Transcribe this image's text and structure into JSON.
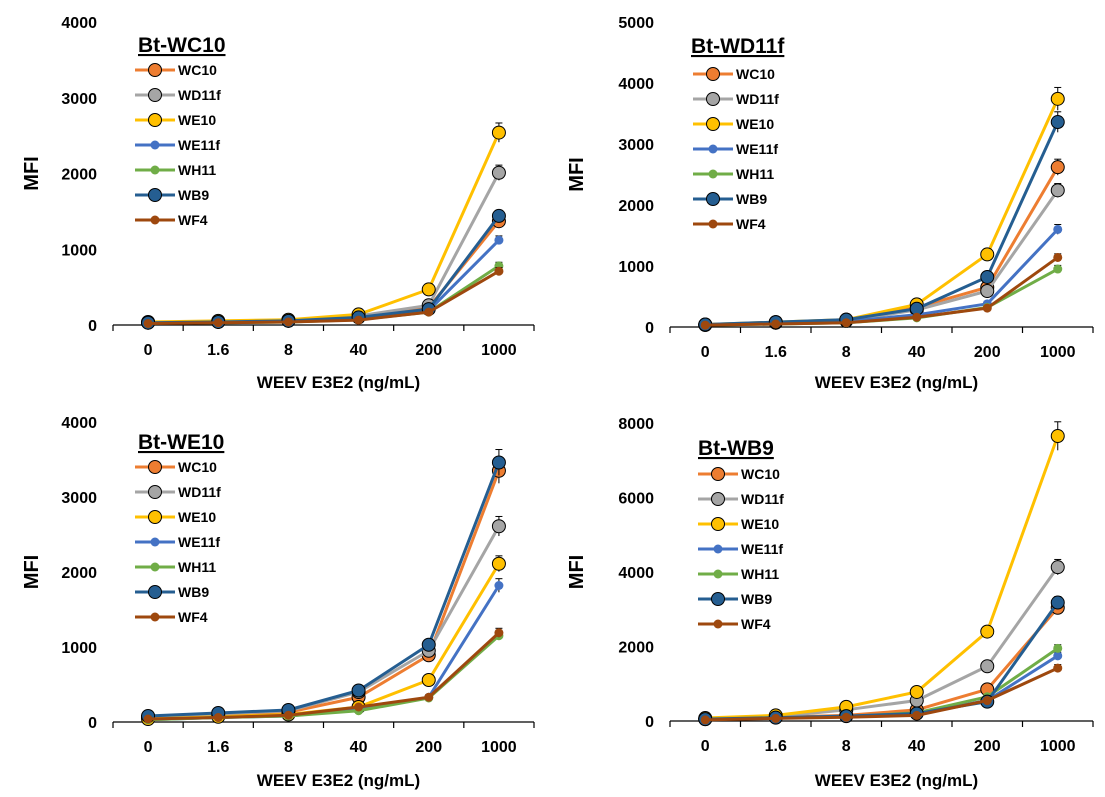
{
  "chart_data": [
    {
      "type": "line",
      "title": "Bt-WC10",
      "xlabel": "WEEV E3E2 (ng/mL)",
      "ylabel": "MFI",
      "categories": [
        "0",
        "1.6",
        "8",
        "40",
        "200",
        "1000"
      ],
      "ylim": [
        0,
        4000
      ],
      "yticks": [
        0,
        1000,
        2000,
        3000,
        4000
      ],
      "legend": "top-left",
      "series": [
        {
          "name": "WC10",
          "values": [
            30,
            40,
            55,
            110,
            230,
            1370
          ],
          "marker": "large",
          "color": "#ED7D31"
        },
        {
          "name": "WD11f",
          "values": [
            35,
            45,
            65,
            120,
            260,
            2010
          ],
          "marker": "large",
          "color": "#A5A5A5"
        },
        {
          "name": "WE10",
          "values": [
            40,
            55,
            70,
            140,
            470,
            2540
          ],
          "marker": "large",
          "color": "#FFC000"
        },
        {
          "name": "WE11f",
          "values": [
            25,
            35,
            45,
            85,
            190,
            1120
          ],
          "marker": "small",
          "color": "#4472C4"
        },
        {
          "name": "WH11",
          "values": [
            25,
            30,
            40,
            70,
            170,
            780
          ],
          "marker": "small",
          "color": "#70AD47"
        },
        {
          "name": "WB9",
          "values": [
            30,
            40,
            55,
            100,
            210,
            1440
          ],
          "marker": "large",
          "color": "#255E91"
        },
        {
          "name": "WF4",
          "values": [
            20,
            30,
            40,
            65,
            170,
            710
          ],
          "marker": "small",
          "color": "#9E480E"
        }
      ]
    },
    {
      "type": "line",
      "title": "Bt-WD11f",
      "xlabel": "WEEV E3E2 (ng/mL)",
      "ylabel": "MFI",
      "categories": [
        "0",
        "1.6",
        "8",
        "40",
        "200",
        "1000"
      ],
      "ylim": [
        0,
        5000
      ],
      "yticks": [
        0,
        1000,
        2000,
        3000,
        4000,
        5000
      ],
      "legend": "top-left",
      "series": [
        {
          "name": "WC10",
          "values": [
            35,
            70,
            110,
            320,
            650,
            2620
          ],
          "marker": "large",
          "color": "#ED7D31"
        },
        {
          "name": "WD11f",
          "values": [
            35,
            70,
            100,
            280,
            590,
            2240
          ],
          "marker": "large",
          "color": "#A5A5A5"
        },
        {
          "name": "WE10",
          "values": [
            40,
            80,
            120,
            370,
            1190,
            3740
          ],
          "marker": "large",
          "color": "#FFC000"
        },
        {
          "name": "WE11f",
          "values": [
            30,
            60,
            90,
            200,
            380,
            1600
          ],
          "marker": "small",
          "color": "#4472C4"
        },
        {
          "name": "WH11",
          "values": [
            30,
            50,
            70,
            150,
            320,
            950
          ],
          "marker": "small",
          "color": "#70AD47"
        },
        {
          "name": "WB9",
          "values": [
            40,
            80,
            120,
            300,
            820,
            3360
          ],
          "marker": "large",
          "color": "#255E91"
        },
        {
          "name": "WF4",
          "values": [
            30,
            50,
            70,
            160,
            310,
            1140
          ],
          "marker": "small",
          "color": "#9E480E"
        }
      ]
    },
    {
      "type": "line",
      "title": "Bt-WE10",
      "xlabel": "WEEV E3E2 (ng/mL)",
      "ylabel": "MFI",
      "categories": [
        "0",
        "1.6",
        "8",
        "40",
        "200",
        "1000"
      ],
      "ylim": [
        0,
        4000
      ],
      "yticks": [
        0,
        1000,
        2000,
        3000,
        4000
      ],
      "legend": "top-left",
      "series": [
        {
          "name": "WC10",
          "values": [
            60,
            100,
            130,
            330,
            890,
            3350
          ],
          "marker": "large",
          "color": "#ED7D31"
        },
        {
          "name": "WD11f",
          "values": [
            70,
            110,
            150,
            400,
            950,
            2610
          ],
          "marker": "large",
          "color": "#A5A5A5"
        },
        {
          "name": "WE10",
          "values": [
            40,
            70,
            100,
            200,
            560,
            2110
          ],
          "marker": "large",
          "color": "#FFC000"
        },
        {
          "name": "WE11f",
          "values": [
            30,
            60,
            80,
            170,
            330,
            1820
          ],
          "marker": "small",
          "color": "#4472C4"
        },
        {
          "name": "WH11",
          "values": [
            30,
            60,
            80,
            150,
            320,
            1150
          ],
          "marker": "small",
          "color": "#70AD47"
        },
        {
          "name": "WB9",
          "values": [
            80,
            120,
            160,
            420,
            1030,
            3460
          ],
          "marker": "large",
          "color": "#255E91"
        },
        {
          "name": "WF4",
          "values": [
            40,
            60,
            90,
            200,
            330,
            1190
          ],
          "marker": "small",
          "color": "#9E480E"
        }
      ]
    },
    {
      "type": "line",
      "title": "Bt-WB9",
      "xlabel": "WEEV E3E2 (ng/mL)",
      "ylabel": "MFI",
      "categories": [
        "0",
        "1.6",
        "8",
        "40",
        "200",
        "1000"
      ],
      "ylim": [
        0,
        8000
      ],
      "yticks": [
        0,
        2000,
        4000,
        6000,
        8000
      ],
      "legend": "top-left",
      "series": [
        {
          "name": "WC10",
          "values": [
            50,
            100,
            150,
            300,
            850,
            3040
          ],
          "marker": "large",
          "color": "#ED7D31"
        },
        {
          "name": "WD11f",
          "values": [
            60,
            120,
            300,
            550,
            1470,
            4130
          ],
          "marker": "large",
          "color": "#A5A5A5"
        },
        {
          "name": "WE10",
          "values": [
            80,
            150,
            380,
            780,
            2400,
            7650
          ],
          "marker": "large",
          "color": "#FFC000"
        },
        {
          "name": "WE11f",
          "values": [
            40,
            80,
            120,
            200,
            550,
            1750
          ],
          "marker": "small",
          "color": "#4472C4"
        },
        {
          "name": "WH11",
          "values": [
            40,
            80,
            120,
            220,
            650,
            1950
          ],
          "marker": "small",
          "color": "#70AD47"
        },
        {
          "name": "WB9",
          "values": [
            50,
            90,
            130,
            200,
            520,
            3180
          ],
          "marker": "large",
          "color": "#255E91"
        },
        {
          "name": "WF4",
          "values": [
            30,
            70,
            100,
            150,
            550,
            1420
          ],
          "marker": "small",
          "color": "#9E480E"
        }
      ]
    }
  ]
}
